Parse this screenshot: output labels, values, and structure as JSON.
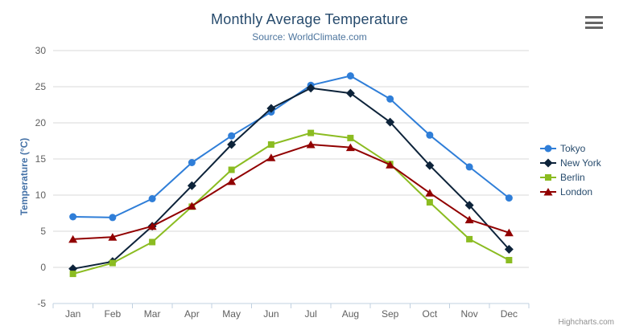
{
  "credits": "Highcharts.com",
  "chart_data": {
    "type": "line",
    "title": "Monthly Average Temperature",
    "subtitle": "Source: WorldClimate.com",
    "categories": [
      "Jan",
      "Feb",
      "Mar",
      "Apr",
      "May",
      "Jun",
      "Jul",
      "Aug",
      "Sep",
      "Oct",
      "Nov",
      "Dec"
    ],
    "series": [
      {
        "name": "Tokyo",
        "color": "#2f7ed8",
        "marker": "circle",
        "values": [
          7.0,
          6.9,
          9.5,
          14.5,
          18.2,
          21.5,
          25.2,
          26.5,
          23.3,
          18.3,
          13.9,
          9.6
        ]
      },
      {
        "name": "New York",
        "color": "#0d233a",
        "marker": "diamond",
        "values": [
          -0.2,
          0.8,
          5.7,
          11.3,
          17.0,
          22.0,
          24.8,
          24.1,
          20.1,
          14.1,
          8.6,
          2.5
        ]
      },
      {
        "name": "Berlin",
        "color": "#8bbc21",
        "marker": "square",
        "values": [
          -0.9,
          0.6,
          3.5,
          8.4,
          13.5,
          17.0,
          18.6,
          17.9,
          14.3,
          9.0,
          3.9,
          1.0
        ]
      },
      {
        "name": "London",
        "color": "#910000",
        "marker": "triangle",
        "values": [
          3.9,
          4.2,
          5.7,
          8.5,
          11.9,
          15.2,
          17.0,
          16.6,
          14.2,
          10.3,
          6.6,
          4.8
        ]
      }
    ],
    "xlabel": "",
    "ylabel": "Temperature (°C)",
    "ylim": [
      -5,
      30
    ],
    "ytick_step": 5,
    "grid": true,
    "legend_position": "right",
    "colors": {
      "grid_line": "#d8d8d8",
      "axis_line": "#c0d0e0",
      "axis_label": "#606060",
      "title": "#274b6d",
      "subtitle": "#4d759e",
      "y_axis_title": "#4572a7",
      "legend_text": "#274b6d",
      "menu_icon": "#666666",
      "credits_text": "#909090"
    }
  }
}
